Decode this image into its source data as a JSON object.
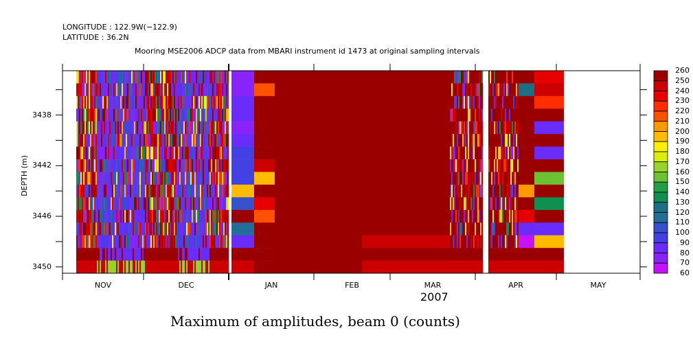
{
  "header": {
    "longitude": "LONGITUDE : 122.9W(−122.9)",
    "latitude": "LATITUDE : 36.2N",
    "title": "Mooring MSE2006 ADCP data from MBARI instrument id 1473 at original sampling intervals"
  },
  "chart_data": {
    "type": "heatmap",
    "title": "Mooring MSE2006 ADCP data from MBARI instrument id 1473 at original sampling intervals",
    "variable_label": "Maximum of amplitudes, beam 0 (counts)",
    "xlabel": "2007",
    "ylabel": "DEPTH (m)",
    "x_tick_labels": [
      "NOV",
      "DEC",
      "JAN",
      "FEB",
      "MAR",
      "APR",
      "MAY"
    ],
    "y_tick_labels": [
      "3438",
      "3442",
      "3446",
      "3450"
    ],
    "y_ticks": [
      3438,
      3442,
      3446,
      3450
    ],
    "ylim": [
      3450.5,
      3434.5
    ],
    "x_range_months": [
      "OCT (late)",
      "MAY (end)"
    ],
    "depth_bins": [
      3435,
      3436,
      3437,
      3438,
      3439,
      3440,
      3441,
      3442,
      3443,
      3444,
      3445,
      3446,
      3447,
      3448,
      3449,
      3450
    ],
    "colorbar": {
      "min": 60,
      "max": 260,
      "step": 10,
      "labels": [
        "260",
        "250",
        "240",
        "230",
        "220",
        "210",
        "200",
        "190",
        "180",
        "170",
        "160",
        "150",
        "140",
        "130",
        "120",
        "110",
        "100",
        "90",
        "80",
        "70",
        "60"
      ],
      "colors": [
        "#9b0000",
        "#b40000",
        "#cd0000",
        "#e60000",
        "#ff0a00",
        "#ff2d00",
        "#ff5200",
        "#ff7800",
        "#ff9900",
        "#ffbb00",
        "#ffdd00",
        "#fff000",
        "#d9ee0a",
        "#b9e01a",
        "#97d42a",
        "#6cc232",
        "#45b03c",
        "#22a046",
        "#0e9050",
        "#12806a",
        "#1b7083",
        "#236e99",
        "#2d5fb4",
        "#3750cc",
        "#4242e4",
        "#5034f4",
        "#6a2cfa",
        "#8824fa",
        "#a61cfa",
        "#c612fa"
      ],
      "band_values": [
        255,
        245,
        235,
        225,
        215,
        205,
        195,
        185,
        175,
        165,
        155,
        145,
        135,
        125,
        115,
        105,
        95,
        85,
        75,
        65
      ]
    },
    "segments": [
      {
        "period": "Nov-early Jan",
        "description": "mixed high-frequency",
        "values": null
      },
      {
        "period": "early Jan",
        "depths": [
          3435,
          3436,
          3437,
          3438,
          3439,
          3440,
          3441,
          3442,
          3443,
          3444,
          3445,
          3446,
          3447,
          3448,
          3449,
          3450
        ],
        "values": [
          75,
          75,
          85,
          85,
          75,
          85,
          95,
          100,
          100,
          195,
          110,
          255,
          115,
          85,
          255,
          245
        ]
      },
      {
        "period": "mid Jan",
        "depths": [
          3435,
          3436,
          3437,
          3438,
          3439,
          3440,
          3441,
          3442,
          3443,
          3444,
          3445,
          3446,
          3447,
          3448,
          3449,
          3450
        ],
        "values": [
          255,
          215,
          255,
          255,
          255,
          255,
          255,
          245,
          195,
          255,
          235,
          215,
          255,
          255,
          255,
          255
        ]
      },
      {
        "period": "late Jan-Mar",
        "values_note": "uniform",
        "values": [
          255
        ]
      },
      {
        "period": "late Apr",
        "depths": [
          3435,
          3436,
          3437,
          3438,
          3439,
          3440,
          3441,
          3442,
          3443,
          3444,
          3445,
          3446,
          3447,
          3448,
          3449,
          3450
        ],
        "values": [
          255,
          125,
          255,
          255,
          255,
          255,
          255,
          255,
          255,
          205,
          255,
          235,
          90,
          70,
          255,
          245
        ]
      },
      {
        "period": "end Apr",
        "depths": [
          3435,
          3436,
          3437,
          3438,
          3439,
          3440,
          3441,
          3442,
          3443,
          3444,
          3445,
          3446,
          3447,
          3448,
          3449,
          3450
        ],
        "values": [
          235,
          245,
          225,
          255,
          90,
          255,
          85,
          255,
          155,
          255,
          135,
          255,
          85,
          195,
          255,
          245
        ]
      }
    ]
  }
}
